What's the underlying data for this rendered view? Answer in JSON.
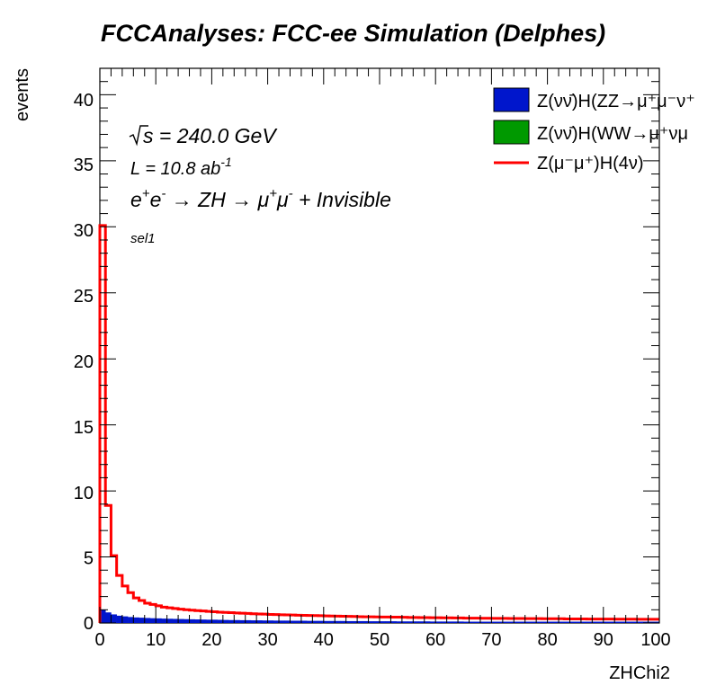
{
  "chart_data": {
    "type": "bar",
    "title": "FCCAnalyses: FCC-ee Simulation (Delphes)",
    "xlabel": "ZHChi2",
    "ylabel": "events",
    "xlim": [
      0,
      100
    ],
    "ylim": [
      0,
      42
    ],
    "x_ticks": [
      "0",
      "10",
      "20",
      "30",
      "40",
      "50",
      "60",
      "70",
      "80",
      "90",
      "100"
    ],
    "y_ticks": [
      "0",
      "5",
      "10",
      "15",
      "20",
      "25",
      "30",
      "35",
      "40"
    ],
    "bin_width": 1,
    "annotations": {
      "sqrt_s": "s = 240.0 GeV",
      "lumi": "L = 10.8 ab",
      "lumi_exp": "-1",
      "process_a": "e",
      "process_b": "e",
      "process_c": " → ZH → μ",
      "process_d": "μ",
      "process_e": " + Invisible",
      "plus": "+",
      "minus": "-",
      "selection": "sel1"
    },
    "legend_position": "top-right",
    "series": [
      {
        "name": "Z(νν̄)H(ZZ→μ⁺μ⁻ν⁺",
        "style": "filled",
        "color": "#0016cc",
        "values": [
          1.0,
          0.8,
          0.65,
          0.55,
          0.5,
          0.45,
          0.42,
          0.4,
          0.38,
          0.36,
          0.35,
          0.33,
          0.32,
          0.31,
          0.3,
          0.29,
          0.28,
          0.27,
          0.26,
          0.25,
          0.25,
          0.24,
          0.23,
          0.22,
          0.22,
          0.21,
          0.21,
          0.2,
          0.2,
          0.19,
          0.19,
          0.18,
          0.18,
          0.18,
          0.17,
          0.17,
          0.17,
          0.16,
          0.16,
          0.16,
          0.15,
          0.15,
          0.15,
          0.15,
          0.14,
          0.14,
          0.14,
          0.14,
          0.13,
          0.13,
          0.13,
          0.13,
          0.13,
          0.12,
          0.12,
          0.12,
          0.12,
          0.12,
          0.12,
          0.11,
          0.11,
          0.11,
          0.11,
          0.11,
          0.11,
          0.1,
          0.1,
          0.1,
          0.1,
          0.1,
          0.1,
          0.1,
          0.1,
          0.1,
          0.1,
          0.1,
          0.1,
          0.1,
          0.1,
          0.1,
          0.1,
          0.1,
          0.1,
          0.1,
          0.1,
          0.1,
          0.1,
          0.1,
          0.1,
          0.1,
          0.1,
          0.1,
          0.1,
          0.1,
          0.1,
          0.1,
          0.1,
          0.1,
          0.1,
          0.1
        ]
      },
      {
        "name": "Z(νν̄)H(WW→μ⁺νμ",
        "style": "filled",
        "color": "#009900",
        "values": []
      },
      {
        "name": "Z(μ⁻μ⁺)H(4ν)",
        "style": "step",
        "color": "#ff0000",
        "values": [
          30.1,
          8.9,
          5.1,
          3.6,
          2.8,
          2.3,
          1.9,
          1.7,
          1.5,
          1.4,
          1.3,
          1.2,
          1.15,
          1.1,
          1.05,
          1.0,
          0.97,
          0.94,
          0.91,
          0.88,
          0.85,
          0.82,
          0.8,
          0.78,
          0.76,
          0.74,
          0.72,
          0.7,
          0.68,
          0.67,
          0.65,
          0.64,
          0.62,
          0.61,
          0.6,
          0.59,
          0.58,
          0.57,
          0.56,
          0.55,
          0.54,
          0.53,
          0.52,
          0.51,
          0.5,
          0.49,
          0.48,
          0.47,
          0.47,
          0.46,
          0.45,
          0.45,
          0.44,
          0.44,
          0.43,
          0.42,
          0.42,
          0.41,
          0.41,
          0.4,
          0.4,
          0.39,
          0.39,
          0.38,
          0.38,
          0.37,
          0.37,
          0.37,
          0.36,
          0.36,
          0.35,
          0.35,
          0.35,
          0.34,
          0.34,
          0.34,
          0.33,
          0.33,
          0.33,
          0.32,
          0.32,
          0.32,
          0.32,
          0.31,
          0.31,
          0.31,
          0.31,
          0.3,
          0.3,
          0.3,
          0.3,
          0.3,
          0.29,
          0.29,
          0.29,
          0.29,
          0.28,
          0.28,
          0.28,
          0.28
        ]
      }
    ]
  }
}
